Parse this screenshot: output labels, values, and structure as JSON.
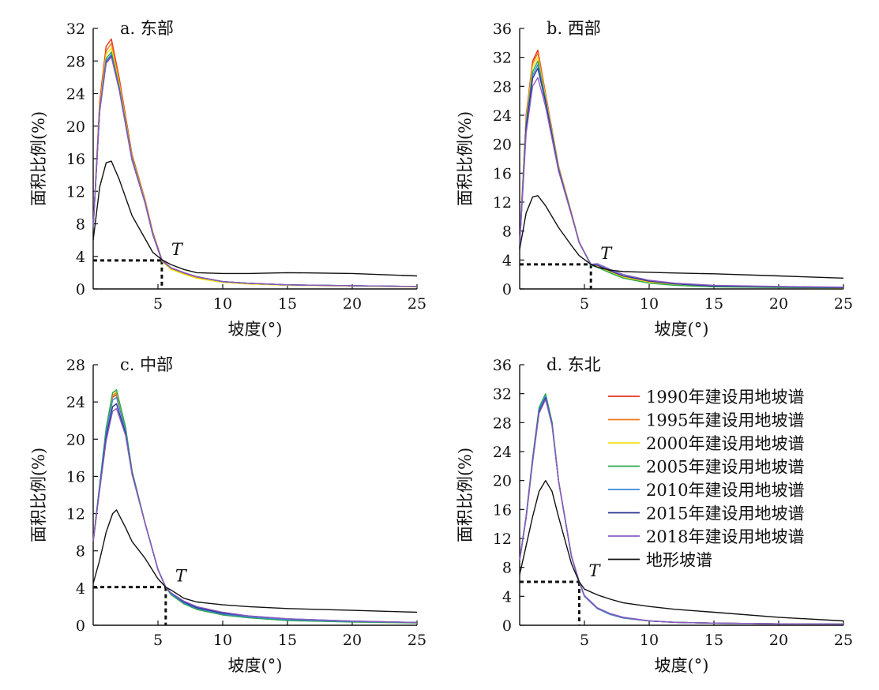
{
  "figure": {
    "xlabel": "坡度(°)",
    "ylabel": "面积比例(%)",
    "threshold_label": "T",
    "legend": [
      {
        "label": "1990年建设用地坡谱",
        "color": "#e8321e"
      },
      {
        "label": "1995年建设用地坡谱",
        "color": "#f07818"
      },
      {
        "label": "2000年建设用地坡谱",
        "color": "#f2e21a"
      },
      {
        "label": "2005年建设用地坡谱",
        "color": "#2aa84a"
      },
      {
        "label": "2010年建设用地坡谱",
        "color": "#3d86d8"
      },
      {
        "label": "2015年建设用地坡谱",
        "color": "#2a3590"
      },
      {
        "label": "2018年建设用地坡谱",
        "color": "#8a5cc2"
      },
      {
        "label": "地形坡谱",
        "color": "#111111"
      }
    ]
  },
  "chart_data": [
    {
      "type": "line",
      "title": "a. 东部",
      "xlabel": "坡度(°)",
      "ylabel": "面积比例(%)",
      "xlim": [
        0,
        25
      ],
      "ylim": [
        0,
        32
      ],
      "xticks": [
        5,
        10,
        15,
        20,
        25
      ],
      "yticks": [
        0,
        4,
        8,
        12,
        16,
        20,
        24,
        28,
        32
      ],
      "threshold": {
        "x": 5.3,
        "y": 3.5
      },
      "x": [
        0,
        0.5,
        1,
        1.4,
        2,
        3,
        4,
        4.6,
        5.3,
        6,
        7,
        8,
        10,
        12,
        15,
        20,
        25
      ],
      "series": [
        {
          "name": "1990年建设用地坡谱",
          "values": [
            7.5,
            23.0,
            29.8,
            30.7,
            26.0,
            16.5,
            11.0,
            7.0,
            3.6,
            2.6,
            2.0,
            1.5,
            0.9,
            0.7,
            0.5,
            0.4,
            0.3
          ]
        },
        {
          "name": "1995年建设用地坡谱",
          "values": [
            7.5,
            22.5,
            29.2,
            30.2,
            25.6,
            16.3,
            10.9,
            6.9,
            3.5,
            2.5,
            1.9,
            1.4,
            0.85,
            0.65,
            0.5,
            0.4,
            0.3
          ]
        },
        {
          "name": "2000年建设用地坡谱",
          "values": [
            7.5,
            22.2,
            28.8,
            29.6,
            25.2,
            16.1,
            10.8,
            6.8,
            3.4,
            2.4,
            1.8,
            1.3,
            0.8,
            0.6,
            0.45,
            0.35,
            0.25
          ]
        },
        {
          "name": "2005年建设用地坡谱",
          "values": [
            7.5,
            22.0,
            28.3,
            29.1,
            24.9,
            16.0,
            10.7,
            6.8,
            3.5,
            2.6,
            2.0,
            1.5,
            0.9,
            0.7,
            0.5,
            0.4,
            0.3
          ]
        },
        {
          "name": "2010年建设用地坡谱",
          "values": [
            7.5,
            21.9,
            28.0,
            28.8,
            24.7,
            15.9,
            10.6,
            6.7,
            3.5,
            2.6,
            2.0,
            1.5,
            0.9,
            0.7,
            0.5,
            0.4,
            0.3
          ]
        },
        {
          "name": "2015年建设用地坡谱",
          "values": [
            7.5,
            21.8,
            27.8,
            28.6,
            24.6,
            15.8,
            10.6,
            6.7,
            3.5,
            2.6,
            2.0,
            1.5,
            0.9,
            0.7,
            0.5,
            0.4,
            0.3
          ]
        },
        {
          "name": "2018年建设用地坡谱",
          "values": [
            7.5,
            21.8,
            27.7,
            28.5,
            24.5,
            15.8,
            10.6,
            6.7,
            3.5,
            2.6,
            2.0,
            1.5,
            0.9,
            0.7,
            0.5,
            0.4,
            0.3
          ]
        },
        {
          "name": "地形坡谱",
          "values": [
            6.0,
            12.5,
            15.5,
            15.7,
            13.5,
            9.0,
            6.2,
            4.5,
            3.6,
            3.0,
            2.4,
            2.0,
            1.9,
            1.9,
            2.0,
            1.9,
            1.6
          ]
        }
      ]
    },
    {
      "type": "line",
      "title": "b. 西部",
      "xlabel": "坡度(°)",
      "ylabel": "面积比例(%)",
      "xlim": [
        0,
        25
      ],
      "ylim": [
        0,
        36
      ],
      "xticks": [
        5,
        10,
        15,
        20,
        25
      ],
      "yticks": [
        0,
        4,
        8,
        12,
        16,
        20,
        24,
        28,
        32,
        36
      ],
      "threshold": {
        "x": 5.5,
        "y": 3.4
      },
      "x": [
        0,
        0.5,
        1,
        1.4,
        2,
        3,
        4,
        4.6,
        5.5,
        6,
        7,
        8,
        10,
        12,
        15,
        20,
        25
      ],
      "series": [
        {
          "name": "1990年建设用地坡谱",
          "values": [
            6.0,
            24.0,
            31.5,
            33.0,
            27.0,
            17.0,
            10.5,
            6.5,
            3.3,
            3.2,
            2.4,
            1.7,
            1.0,
            0.6,
            0.35,
            0.25,
            0.15
          ]
        },
        {
          "name": "1995年建设用地坡谱",
          "values": [
            6.0,
            23.7,
            31.1,
            32.6,
            26.8,
            16.9,
            10.4,
            6.5,
            3.3,
            3.2,
            2.4,
            1.7,
            1.0,
            0.6,
            0.35,
            0.25,
            0.15
          ]
        },
        {
          "name": "2000年建设用地坡谱",
          "values": [
            6.0,
            23.3,
            30.6,
            32.0,
            26.5,
            16.8,
            10.4,
            6.4,
            3.3,
            3.1,
            2.3,
            1.6,
            0.9,
            0.55,
            0.3,
            0.2,
            0.15
          ]
        },
        {
          "name": "2005年建设用地坡谱",
          "values": [
            6.0,
            23.0,
            30.0,
            31.5,
            26.2,
            16.7,
            10.3,
            6.4,
            3.3,
            3.0,
            2.2,
            1.5,
            0.8,
            0.5,
            0.3,
            0.2,
            0.15
          ]
        },
        {
          "name": "2010年建设用地坡谱",
          "values": [
            6.0,
            22.6,
            29.5,
            31.0,
            26.0,
            16.6,
            10.3,
            6.4,
            3.4,
            3.3,
            2.5,
            1.8,
            1.1,
            0.7,
            0.4,
            0.3,
            0.2
          ]
        },
        {
          "name": "2015年建设用地坡谱",
          "values": [
            6.0,
            22.3,
            29.1,
            30.5,
            25.8,
            16.5,
            10.3,
            6.4,
            3.4,
            3.3,
            2.5,
            1.8,
            1.1,
            0.7,
            0.4,
            0.3,
            0.2
          ]
        },
        {
          "name": "2018年建设用地坡谱",
          "values": [
            6.0,
            21.5,
            28.0,
            29.2,
            25.2,
            16.3,
            10.2,
            6.4,
            3.4,
            3.5,
            2.7,
            2.0,
            1.2,
            0.8,
            0.5,
            0.35,
            0.25
          ]
        },
        {
          "name": "地形坡谱",
          "values": [
            5.5,
            10.5,
            12.7,
            12.9,
            11.5,
            8.5,
            6.0,
            4.6,
            3.4,
            3.0,
            2.6,
            2.4,
            2.3,
            2.2,
            2.1,
            1.8,
            1.5
          ]
        }
      ]
    },
    {
      "type": "line",
      "title": "c. 中部",
      "xlabel": "坡度(°)",
      "ylabel": "面积比例(%)",
      "xlim": [
        0,
        25
      ],
      "ylim": [
        0,
        28
      ],
      "xticks": [
        5,
        10,
        15,
        20,
        25
      ],
      "yticks": [
        0,
        4,
        8,
        12,
        16,
        20,
        24,
        28
      ],
      "threshold": {
        "x": 5.6,
        "y": 4.1
      },
      "x": [
        0,
        0.5,
        1,
        1.5,
        1.8,
        2.5,
        3,
        4,
        5,
        5.6,
        6,
        7,
        8,
        10,
        12,
        15,
        20,
        25
      ],
      "series": [
        {
          "name": "1990年建设用地坡谱",
          "values": [
            9.0,
            15.0,
            21.0,
            24.5,
            24.8,
            21.0,
            16.5,
            11.0,
            6.0,
            4.1,
            3.4,
            2.4,
            1.8,
            1.2,
            0.9,
            0.6,
            0.4,
            0.3
          ]
        },
        {
          "name": "1995年建设用地坡谱",
          "values": [
            9.0,
            15.0,
            21.0,
            24.7,
            25.0,
            21.1,
            16.5,
            11.0,
            6.0,
            4.1,
            3.4,
            2.4,
            1.8,
            1.2,
            0.9,
            0.6,
            0.4,
            0.3
          ]
        },
        {
          "name": "2000年建设用地坡谱",
          "values": [
            9.0,
            15.0,
            21.0,
            24.9,
            25.2,
            21.2,
            16.6,
            11.0,
            6.0,
            4.1,
            3.3,
            2.3,
            1.7,
            1.1,
            0.85,
            0.55,
            0.35,
            0.25
          ]
        },
        {
          "name": "2005年建设用地坡谱",
          "values": [
            9.0,
            15.1,
            21.2,
            25.0,
            25.3,
            21.3,
            16.6,
            11.0,
            6.0,
            4.1,
            3.3,
            2.3,
            1.7,
            1.1,
            0.8,
            0.5,
            0.35,
            0.25
          ]
        },
        {
          "name": "2010年建设用地坡谱",
          "values": [
            9.0,
            14.9,
            20.7,
            24.2,
            24.5,
            20.9,
            16.4,
            11.0,
            6.0,
            4.1,
            3.4,
            2.4,
            1.8,
            1.2,
            0.9,
            0.6,
            0.4,
            0.3
          ]
        },
        {
          "name": "2015年建设用地坡谱",
          "values": [
            9.0,
            14.7,
            20.2,
            23.5,
            23.8,
            20.6,
            16.3,
            11.0,
            6.0,
            4.1,
            3.5,
            2.5,
            1.9,
            1.3,
            1.0,
            0.7,
            0.45,
            0.3
          ]
        },
        {
          "name": "2018年建设用地坡谱",
          "values": [
            9.0,
            14.5,
            19.8,
            23.0,
            23.3,
            20.4,
            16.2,
            11.0,
            6.0,
            4.1,
            3.5,
            2.6,
            2.0,
            1.4,
            1.0,
            0.7,
            0.45,
            0.3
          ]
        },
        {
          "name": "地形坡谱",
          "values": [
            4.5,
            7.0,
            10.0,
            12.0,
            12.4,
            10.5,
            9.0,
            7.2,
            5.0,
            4.1,
            3.8,
            2.9,
            2.5,
            2.2,
            2.0,
            1.8,
            1.6,
            1.4
          ]
        }
      ]
    },
    {
      "type": "line",
      "title": "d. 东北",
      "xlabel": "坡度(°)",
      "ylabel": "面积比例(%)",
      "xlim": [
        0,
        25
      ],
      "ylim": [
        0,
        36
      ],
      "xticks": [
        5,
        10,
        15,
        20,
        25
      ],
      "yticks": [
        0,
        4,
        8,
        12,
        16,
        20,
        24,
        28,
        32,
        36
      ],
      "threshold": {
        "x": 4.6,
        "y": 6.0
      },
      "x": [
        0,
        0.5,
        1,
        1.5,
        2,
        2.5,
        3,
        4,
        4.6,
        5,
        6,
        7,
        8,
        10,
        12,
        15,
        20,
        25
      ],
      "series": [
        {
          "name": "1990年建设用地坡谱",
          "values": [
            9.0,
            15.0,
            23.0,
            30.0,
            31.9,
            28.0,
            20.0,
            9.5,
            6.0,
            4.0,
            2.3,
            1.5,
            1.0,
            0.6,
            0.4,
            0.3,
            0.2,
            0.15
          ]
        },
        {
          "name": "1995年建设用地坡谱",
          "values": [
            9.0,
            15.0,
            23.0,
            30.0,
            31.9,
            28.0,
            20.0,
            9.5,
            6.0,
            4.0,
            2.3,
            1.5,
            1.0,
            0.6,
            0.4,
            0.3,
            0.2,
            0.15
          ]
        },
        {
          "name": "2000年建设用地坡谱",
          "values": [
            9.0,
            15.0,
            23.0,
            30.0,
            31.9,
            28.0,
            20.0,
            9.5,
            6.0,
            4.0,
            2.3,
            1.5,
            1.0,
            0.6,
            0.4,
            0.3,
            0.2,
            0.15
          ]
        },
        {
          "name": "2005年建设用地坡谱",
          "values": [
            9.0,
            15.0,
            23.1,
            30.1,
            32.0,
            28.1,
            20.0,
            9.5,
            6.0,
            4.0,
            2.3,
            1.5,
            1.0,
            0.6,
            0.4,
            0.3,
            0.2,
            0.15
          ]
        },
        {
          "name": "2010年建设用地坡谱",
          "values": [
            9.0,
            15.0,
            22.9,
            29.8,
            31.7,
            27.9,
            20.0,
            9.5,
            6.0,
            4.0,
            2.3,
            1.5,
            1.0,
            0.6,
            0.4,
            0.3,
            0.2,
            0.15
          ]
        },
        {
          "name": "2015年建设用地坡谱",
          "values": [
            9.0,
            14.9,
            22.7,
            29.5,
            31.4,
            27.7,
            20.0,
            9.5,
            6.0,
            4.1,
            2.4,
            1.6,
            1.1,
            0.6,
            0.4,
            0.3,
            0.2,
            0.15
          ]
        },
        {
          "name": "2018年建设用地坡谱",
          "values": [
            9.0,
            14.8,
            22.5,
            29.3,
            31.2,
            27.6,
            20.0,
            9.6,
            6.0,
            4.1,
            2.4,
            1.6,
            1.1,
            0.6,
            0.4,
            0.3,
            0.2,
            0.15
          ]
        },
        {
          "name": "地形坡谱",
          "values": [
            7.0,
            11.0,
            15.0,
            18.5,
            20.0,
            18.5,
            15.0,
            8.5,
            6.0,
            5.0,
            4.2,
            3.6,
            3.1,
            2.6,
            2.2,
            1.8,
            1.1,
            0.6
          ]
        }
      ]
    }
  ]
}
